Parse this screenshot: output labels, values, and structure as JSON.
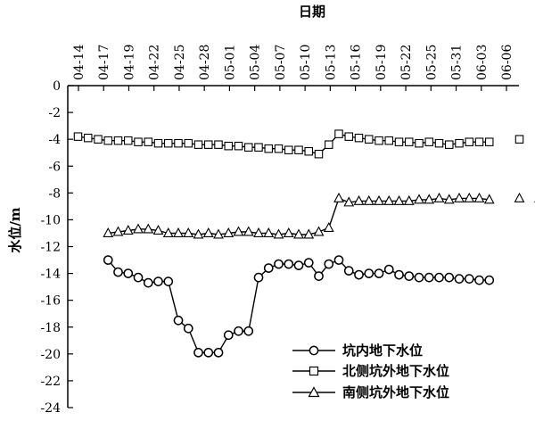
{
  "chart_data": {
    "type": "line",
    "xlabel": "日期",
    "ylabel": "水位/m",
    "x_axis_position": "top",
    "x_ticks": [
      "04-14",
      "04-17",
      "04-19",
      "04-22",
      "04-25",
      "04-28",
      "05-01",
      "05-04",
      "05-07",
      "05-10",
      "05-13",
      "05-16",
      "05-19",
      "05-22",
      "05-25",
      "05-31",
      "06-03",
      "06-06"
    ],
    "ylim": [
      -24,
      0
    ],
    "y_ticks": [
      0,
      -2,
      -4,
      -6,
      -8,
      -10,
      -12,
      -14,
      -16,
      -18,
      -20,
      -22,
      -24
    ],
    "grid": false,
    "legend_position": "bottom-right",
    "series": [
      {
        "name": "坑内地下水位",
        "marker": "circle",
        "connected": true,
        "points": [
          [
            3,
            -13.0
          ],
          [
            4,
            -13.9
          ],
          [
            5,
            -14.0
          ],
          [
            6,
            -14.3
          ],
          [
            7,
            -14.7
          ],
          [
            8,
            -14.6
          ],
          [
            9,
            -14.6
          ],
          [
            10,
            -17.5
          ],
          [
            11,
            -18.1
          ],
          [
            12,
            -19.9
          ],
          [
            13,
            -19.9
          ],
          [
            14,
            -19.9
          ],
          [
            15,
            -18.6
          ],
          [
            16,
            -18.3
          ],
          [
            17,
            -18.3
          ],
          [
            18,
            -14.3
          ],
          [
            19,
            -13.6
          ],
          [
            20,
            -13.3
          ],
          [
            21,
            -13.3
          ],
          [
            22,
            -13.4
          ],
          [
            23,
            -13.2
          ],
          [
            24,
            -14.2
          ],
          [
            25,
            -13.3
          ],
          [
            26,
            -13.0
          ],
          [
            27,
            -13.8
          ],
          [
            28,
            -14.1
          ],
          [
            29,
            -14.0
          ],
          [
            30,
            -14.0
          ],
          [
            31,
            -13.7
          ],
          [
            32,
            -14.1
          ],
          [
            33,
            -14.2
          ],
          [
            34,
            -14.3
          ],
          [
            35,
            -14.3
          ],
          [
            36,
            -14.3
          ],
          [
            37,
            -14.3
          ],
          [
            38,
            -14.4
          ],
          [
            39,
            -14.4
          ],
          [
            40,
            -14.5
          ],
          [
            41,
            -14.5
          ]
        ]
      },
      {
        "name": "北侧坑外地下水位",
        "marker": "square",
        "connected": true,
        "points": [
          [
            0,
            -3.8
          ],
          [
            1,
            -3.9
          ],
          [
            2,
            -4.0
          ],
          [
            3,
            -4.1
          ],
          [
            4,
            -4.1
          ],
          [
            5,
            -4.1
          ],
          [
            6,
            -4.2
          ],
          [
            7,
            -4.2
          ],
          [
            8,
            -4.3
          ],
          [
            9,
            -4.3
          ],
          [
            10,
            -4.3
          ],
          [
            11,
            -4.3
          ],
          [
            12,
            -4.4
          ],
          [
            13,
            -4.4
          ],
          [
            14,
            -4.4
          ],
          [
            15,
            -4.5
          ],
          [
            16,
            -4.5
          ],
          [
            17,
            -4.6
          ],
          [
            18,
            -4.6
          ],
          [
            19,
            -4.7
          ],
          [
            20,
            -4.7
          ],
          [
            21,
            -4.8
          ],
          [
            22,
            -4.8
          ],
          [
            23,
            -4.9
          ],
          [
            24,
            -5.1
          ],
          [
            25,
            -4.4
          ],
          [
            26,
            -3.6
          ],
          [
            27,
            -3.8
          ],
          [
            28,
            -3.9
          ],
          [
            29,
            -4.0
          ],
          [
            30,
            -4.1
          ],
          [
            31,
            -4.1
          ],
          [
            32,
            -4.2
          ],
          [
            33,
            -4.2
          ],
          [
            34,
            -4.3
          ],
          [
            35,
            -4.2
          ],
          [
            36,
            -4.3
          ],
          [
            37,
            -4.4
          ],
          [
            38,
            -4.3
          ],
          [
            39,
            -4.2
          ],
          [
            40,
            -4.2
          ],
          [
            41,
            -4.2
          ]
        ],
        "extra_points": [
          [
            44,
            -4.0
          ],
          [
            46,
            -4.1
          ],
          [
            47,
            -4.0
          ]
        ]
      },
      {
        "name": "南侧坑外地下水位",
        "marker": "triangle",
        "connected": true,
        "points": [
          [
            3,
            -11.0
          ],
          [
            4,
            -10.9
          ],
          [
            5,
            -10.8
          ],
          [
            6,
            -10.7
          ],
          [
            7,
            -10.7
          ],
          [
            8,
            -10.8
          ],
          [
            9,
            -11.0
          ],
          [
            10,
            -11.0
          ],
          [
            11,
            -11.0
          ],
          [
            12,
            -11.1
          ],
          [
            13,
            -11.0
          ],
          [
            14,
            -11.1
          ],
          [
            15,
            -11.0
          ],
          [
            16,
            -10.9
          ],
          [
            17,
            -10.9
          ],
          [
            18,
            -11.0
          ],
          [
            19,
            -11.0
          ],
          [
            20,
            -11.1
          ],
          [
            21,
            -11.0
          ],
          [
            22,
            -11.1
          ],
          [
            23,
            -11.1
          ],
          [
            24,
            -10.9
          ],
          [
            25,
            -10.6
          ],
          [
            26,
            -8.4
          ],
          [
            27,
            -8.7
          ],
          [
            28,
            -8.6
          ],
          [
            29,
            -8.6
          ],
          [
            30,
            -8.6
          ],
          [
            31,
            -8.6
          ],
          [
            32,
            -8.6
          ],
          [
            33,
            -8.6
          ],
          [
            34,
            -8.5
          ],
          [
            35,
            -8.5
          ],
          [
            36,
            -8.4
          ],
          [
            37,
            -8.5
          ],
          [
            38,
            -8.4
          ],
          [
            39,
            -8.4
          ],
          [
            40,
            -8.4
          ],
          [
            41,
            -8.5
          ]
        ],
        "extra_points": [
          [
            44,
            -8.4
          ],
          [
            46,
            -8.4
          ],
          [
            47,
            -8.4
          ]
        ]
      }
    ]
  },
  "legend": {
    "items": [
      "坑内地下水位",
      "北侧坑外地下水位",
      "南侧坑外地下水位"
    ]
  }
}
